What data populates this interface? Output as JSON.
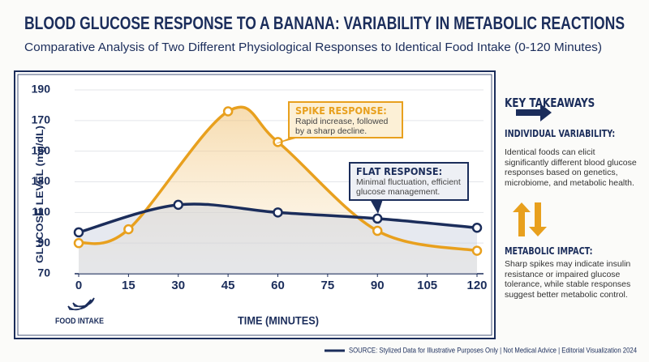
{
  "chart_data": {
    "type": "line",
    "title": "BLOOD GLUCOSE RESPONSE TO A BANANA: VARIABILITY IN METABOLIC REACTIONS",
    "subtitle": "Comparative Analysis of Two Different Physiological Responses to Identical Food Intake (0-120 Minutes)",
    "x_label": "TIME (MINUTES)",
    "y_label": "GLUCOSE LEVEL (mg/dL)",
    "xlim": [
      0,
      120
    ],
    "xticks": [
      0,
      15,
      30,
      45,
      60,
      75,
      90,
      105,
      120
    ],
    "ylim": [
      70,
      190
    ],
    "yticks": [
      70,
      90,
      110,
      130,
      150,
      170,
      190
    ],
    "grid": true,
    "series": [
      {
        "name": "SPIKE RESPONSE",
        "color": "#e8a01e",
        "x": [
          0,
          15,
          45,
          60,
          90,
          120
        ],
        "values": [
          90,
          99,
          176,
          156,
          98,
          85
        ]
      },
      {
        "name": "FLAT RESPONSE",
        "color": "#1b2d5b",
        "x": [
          0,
          30,
          60,
          90,
          120
        ],
        "values": [
          97,
          115,
          110,
          106,
          100
        ]
      }
    ],
    "annotations": [
      {
        "title": "SPIKE RESPONSE:",
        "text": "Rapid increase, followed by a sharp decline."
      },
      {
        "title": "FLAT RESPONSE:",
        "text": "Minimal fluctuation, efficient glucose management."
      }
    ],
    "food_intake_label": "FOOD INTAKE"
  },
  "sidebar": {
    "title": "KEY TAKEAWAYS",
    "items": [
      {
        "heading": "INDIVIDUAL VARIABILITY:",
        "text": "Identical foods can elicit significantly different blood glucose responses based on genetics, microbiome, and metabolic health."
      },
      {
        "heading": "METABOLIC IMPACT:",
        "text": "Sharp spikes may indicate insulin resistance or impaired glucose tolerance, while stable responses suggest better metabolic control."
      }
    ]
  },
  "footer": {
    "source": "SOURCE: Stylized Data for Illustrative Purposes Only | Not Medical Advice | Editorial Visualization 2024"
  }
}
